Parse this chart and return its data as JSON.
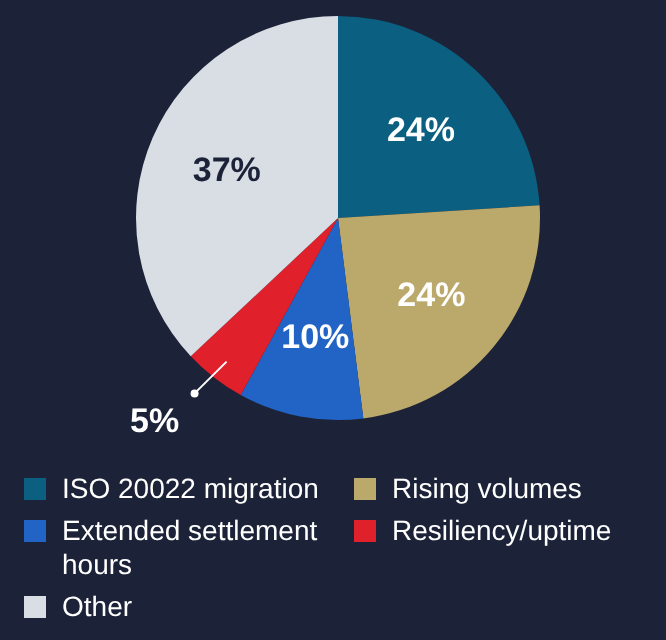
{
  "chart_data": {
    "type": "pie",
    "categories": [
      "ISO 20022 migration",
      "Rising volumes",
      "Extended settlement hours",
      "Resiliency/uptime",
      "Other"
    ],
    "values": [
      24,
      24,
      10,
      5,
      37
    ],
    "colors": [
      "#0b5f80",
      "#bba96b",
      "#2164c6",
      "#e0202b",
      "#d9dde4"
    ],
    "value_labels": [
      "24%",
      "24%",
      "10%",
      "5%",
      "37%"
    ],
    "legend": "bottom"
  }
}
